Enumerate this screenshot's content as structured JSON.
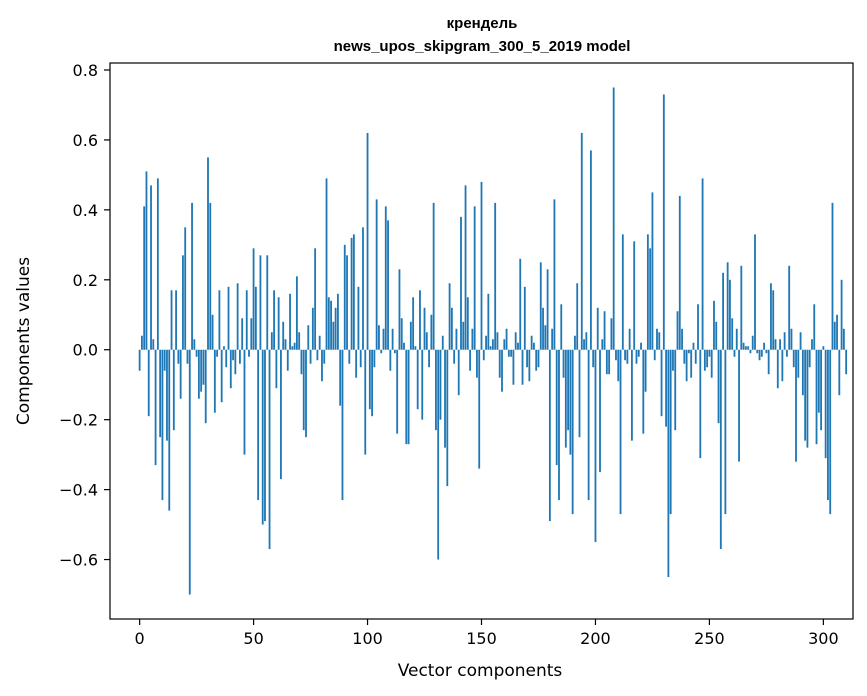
{
  "chart_data": {
    "type": "bar",
    "title": [
      "крендель",
      "news_upos_skipgram_300_5_2019 model"
    ],
    "xlabel": "Vector components",
    "ylabel": "Components values",
    "xlim": [
      -13,
      313
    ],
    "ylim": [
      -0.77,
      0.82
    ],
    "xticks": [
      0,
      50,
      100,
      150,
      200,
      250,
      300
    ],
    "yticks": [
      -0.6,
      -0.4,
      -0.2,
      0.0,
      0.2,
      0.4,
      0.6,
      0.8
    ],
    "ytick_labels": [
      "−0.6",
      "−0.4",
      "−0.2",
      "0.0",
      "0.2",
      "0.4",
      "0.6",
      "0.8"
    ],
    "grid": false,
    "bar_color": "#1f77b4",
    "values": [
      -0.06,
      0.04,
      0.41,
      0.51,
      -0.19,
      0.47,
      0.03,
      -0.33,
      0.49,
      -0.25,
      -0.43,
      -0.06,
      -0.26,
      -0.46,
      0.17,
      -0.23,
      0.17,
      -0.04,
      -0.14,
      0.27,
      0.35,
      -0.04,
      -0.7,
      0.42,
      0.03,
      -0.02,
      -0.14,
      -0.12,
      -0.1,
      -0.21,
      0.55,
      0.42,
      0.1,
      -0.18,
      -0.02,
      0.17,
      -0.15,
      0.01,
      -0.05,
      0.18,
      -0.11,
      -0.03,
      -0.07,
      0.19,
      -0.04,
      0.09,
      -0.3,
      0.17,
      -0.02,
      0.09,
      0.29,
      0.18,
      -0.43,
      0.27,
      -0.5,
      -0.49,
      0.27,
      -0.57,
      0.05,
      0.17,
      -0.11,
      0.15,
      -0.37,
      0.08,
      0.03,
      -0.06,
      0.16,
      0.01,
      0.02,
      0.21,
      0.05,
      -0.07,
      -0.23,
      -0.25,
      0.07,
      -0.04,
      0.12,
      0.29,
      -0.03,
      0.04,
      -0.09,
      -0.04,
      0.49,
      0.15,
      0.14,
      0.08,
      0.12,
      0.16,
      -0.16,
      -0.43,
      0.3,
      0.27,
      -0.04,
      0.32,
      0.33,
      -0.08,
      0.18,
      -0.05,
      0.35,
      -0.3,
      0.62,
      -0.17,
      -0.19,
      -0.05,
      0.43,
      0.07,
      -0.01,
      0.06,
      0.41,
      0.37,
      -0.06,
      0.06,
      -0.01,
      -0.24,
      0.23,
      0.09,
      0.02,
      -0.27,
      -0.27,
      0.08,
      0.15,
      0.01,
      -0.17,
      0.17,
      -0.2,
      0.12,
      0.05,
      -0.05,
      0.1,
      0.42,
      -0.23,
      -0.6,
      -0.2,
      0.04,
      -0.28,
      -0.39,
      0.19,
      0.12,
      -0.04,
      0.06,
      -0.13,
      0.38,
      0.08,
      0.47,
      0.15,
      -0.06,
      0.06,
      0.41,
      -0.08,
      -0.34,
      0.48,
      -0.03,
      0.04,
      0.16,
      0.01,
      0.03,
      0.42,
      0.05,
      -0.08,
      -0.12,
      0.03,
      0.06,
      -0.02,
      -0.02,
      -0.1,
      0.05,
      0.02,
      0.26,
      -0.1,
      0.18,
      -0.05,
      -0.09,
      0.04,
      0.02,
      -0.06,
      -0.05,
      0.25,
      0.12,
      0.07,
      0.23,
      -0.49,
      0.06,
      0.43,
      -0.33,
      -0.43,
      0.13,
      -0.08,
      -0.28,
      -0.23,
      -0.3,
      -0.47,
      0.04,
      0.19,
      -0.25,
      0.62,
      0.03,
      0.05,
      -0.43,
      0.57,
      -0.05,
      -0.55,
      0.12,
      -0.35,
      0.03,
      0.11,
      -0.07,
      -0.07,
      0.09,
      0.75,
      -0.03,
      -0.09,
      -0.47,
      0.33,
      -0.03,
      -0.04,
      0.06,
      -0.26,
      0.31,
      -0.04,
      -0.02,
      0.02,
      -0.24,
      -0.12,
      0.33,
      0.29,
      0.45,
      -0.03,
      0.06,
      0.05,
      -0.19,
      0.73,
      -0.22,
      -0.65,
      -0.47,
      -0.06,
      -0.23,
      0.11,
      0.44,
      0.06,
      -0.04,
      -0.09,
      -0.01,
      -0.08,
      0.02,
      -0.04,
      0.13,
      -0.31,
      0.49,
      -0.06,
      -0.05,
      -0.02,
      -0.08,
      0.14,
      0.08,
      -0.21,
      -0.57,
      0.22,
      -0.47,
      0.25,
      0.2,
      0.09,
      -0.02,
      0.06,
      -0.32,
      0.24,
      0.02,
      0.01,
      0.01,
      -0.01,
      0.04,
      0.33,
      -0.01,
      -0.03,
      -0.02,
      0.02,
      -0.01,
      -0.07,
      0.19,
      0.17,
      0.03,
      -0.11,
      0.03,
      -0.09,
      0.05,
      -0.02,
      0.24,
      0.06,
      -0.05,
      -0.32,
      -0.08,
      0.05,
      -0.13,
      -0.26,
      -0.28,
      -0.05,
      0.03,
      0.13,
      -0.27,
      -0.18,
      -0.23,
      0.01,
      -0.31,
      -0.43,
      -0.47,
      0.42,
      0.08,
      0.1,
      -0.13,
      0.2,
      0.06,
      -0.07
    ]
  }
}
